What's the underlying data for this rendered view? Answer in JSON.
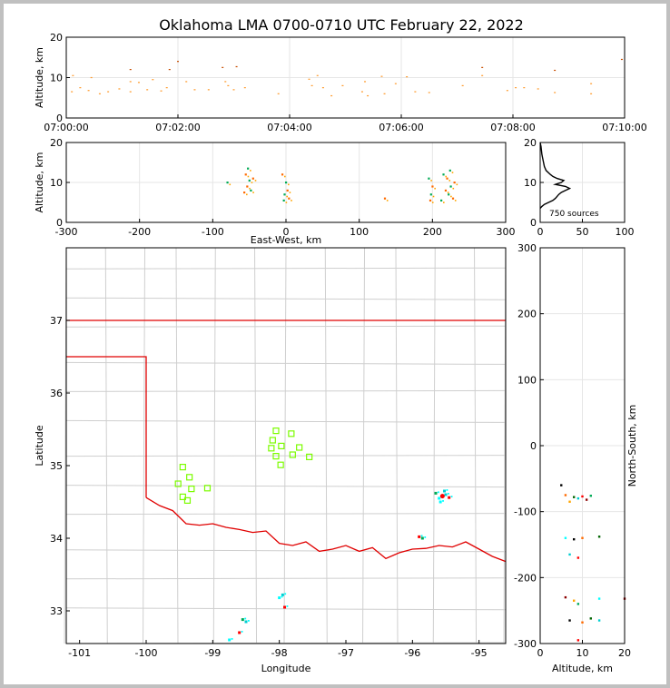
{
  "chart_data": [
    {
      "panel": "altitude-time",
      "type": "scatter",
      "title": "Oklahoma LMA 0700-0710 UTC February 22, 2022",
      "ylabel": "Altitude, km",
      "ylim": [
        0,
        20
      ],
      "yticks": [
        "0",
        "10",
        "20"
      ],
      "xticks": [
        "07:00:00",
        "07:02:00",
        "07:04:00",
        "07:06:00",
        "07:08:00",
        "07:10:00"
      ],
      "x_unit": "minutes after 07:00:00 UTC",
      "xlim": [
        0,
        10
      ],
      "points": [
        [
          0.1,
          6.5
        ],
        [
          0.12,
          10.5
        ],
        [
          0.25,
          7.5
        ],
        [
          0.4,
          6.8
        ],
        [
          0.45,
          10
        ],
        [
          0.6,
          6
        ],
        [
          0.75,
          6.5
        ],
        [
          0.95,
          7.2
        ],
        [
          1.15,
          12
        ],
        [
          1.15,
          9
        ],
        [
          1.15,
          6.5
        ],
        [
          1.3,
          8.8
        ],
        [
          1.45,
          7
        ],
        [
          1.55,
          9.5
        ],
        [
          1.7,
          6.7
        ],
        [
          1.8,
          7.5
        ],
        [
          1.85,
          12
        ],
        [
          2.0,
          14
        ],
        [
          2.15,
          9
        ],
        [
          2.3,
          7
        ],
        [
          2.55,
          7
        ],
        [
          2.8,
          12.5
        ],
        [
          2.85,
          9
        ],
        [
          2.9,
          8
        ],
        [
          3.0,
          7
        ],
        [
          3.05,
          12.7
        ],
        [
          3.2,
          7.5
        ],
        [
          3.8,
          6
        ],
        [
          4.35,
          9.6
        ],
        [
          4.4,
          8
        ],
        [
          4.5,
          10.5
        ],
        [
          4.6,
          7.5
        ],
        [
          4.75,
          5.5
        ],
        [
          4.95,
          8
        ],
        [
          5.3,
          6.5
        ],
        [
          5.35,
          9
        ],
        [
          5.4,
          5.5
        ],
        [
          5.65,
          10.3
        ],
        [
          5.7,
          6
        ],
        [
          5.9,
          8.5
        ],
        [
          6.1,
          10.2
        ],
        [
          6.25,
          6.5
        ],
        [
          6.5,
          6.3
        ],
        [
          7.1,
          8
        ],
        [
          7.45,
          12.5
        ],
        [
          7.45,
          10.5
        ],
        [
          7.9,
          6.8
        ],
        [
          8.05,
          7.5
        ],
        [
          8.2,
          7.5
        ],
        [
          8.45,
          7.2
        ],
        [
          8.75,
          6.3
        ],
        [
          8.75,
          11.8
        ],
        [
          9.4,
          6
        ],
        [
          9.4,
          8.5
        ],
        [
          9.95,
          14.5
        ]
      ]
    },
    {
      "panel": "altitude-eastwest",
      "type": "scatter",
      "xlabel": "East-West, km",
      "ylabel": "Altitude, km",
      "xlim": [
        -300,
        300
      ],
      "ylim": [
        0,
        20
      ],
      "xticks": [
        "-300",
        "-200",
        "-100",
        "0",
        "100",
        "200",
        "300"
      ],
      "yticks": [
        "0",
        "10",
        "20"
      ],
      "points": [
        [
          -55,
          12
        ],
        [
          -50,
          10.5
        ],
        [
          -53,
          9
        ],
        [
          -48,
          8
        ],
        [
          -57,
          7.5
        ],
        [
          -80,
          10
        ],
        [
          -45,
          11
        ],
        [
          -52,
          13.5
        ],
        [
          -5,
          12
        ],
        [
          0,
          10
        ],
        [
          2,
          8
        ],
        [
          -2,
          7
        ],
        [
          4,
          6
        ],
        [
          -3,
          5.5
        ],
        [
          135,
          6
        ],
        [
          195,
          11
        ],
        [
          200,
          9
        ],
        [
          198,
          7
        ],
        [
          197,
          5.5
        ],
        [
          215,
          12
        ],
        [
          220,
          11
        ],
        [
          225,
          9
        ],
        [
          218,
          8
        ],
        [
          222,
          7
        ],
        [
          228,
          6
        ],
        [
          212,
          5.5
        ],
        [
          230,
          10
        ],
        [
          224,
          13
        ]
      ]
    },
    {
      "panel": "altitude-histogram",
      "type": "line",
      "xlim": [
        0,
        100
      ],
      "ylim": [
        0,
        20
      ],
      "xticks": [
        "0",
        "50",
        "100"
      ],
      "yticks": [
        "0",
        "10",
        "20"
      ],
      "annotation": "750 sources",
      "points": [
        [
          0,
          20
        ],
        [
          1,
          19
        ],
        [
          2,
          17
        ],
        [
          3,
          16
        ],
        [
          4,
          15
        ],
        [
          5,
          14
        ],
        [
          7,
          13
        ],
        [
          12,
          12
        ],
        [
          15,
          11.5
        ],
        [
          20,
          11
        ],
        [
          28,
          10.5
        ],
        [
          25,
          10
        ],
        [
          18,
          9.5
        ],
        [
          30,
          9
        ],
        [
          35,
          8.5
        ],
        [
          30,
          8
        ],
        [
          25,
          7.5
        ],
        [
          22,
          7
        ],
        [
          20,
          6.5
        ],
        [
          18,
          6
        ],
        [
          15,
          5.5
        ],
        [
          10,
          5
        ],
        [
          5,
          4.5
        ],
        [
          2,
          4
        ],
        [
          0,
          3.5
        ]
      ]
    },
    {
      "panel": "plan-view-map",
      "type": "scatter",
      "xlabel": "Longitude",
      "ylabel": "Latitude",
      "xlim": [
        -101.2,
        -94.6
      ],
      "ylim": [
        32.55,
        38.0
      ],
      "xticks": [
        "-101",
        "-100",
        "-99",
        "-98",
        "-97",
        "-96",
        "-95"
      ],
      "yticks": [
        "33",
        "34",
        "35",
        "36",
        "37"
      ],
      "stations": [
        [
          -98.05,
          35.48
        ],
        [
          -97.82,
          35.44
        ],
        [
          -98.1,
          35.35
        ],
        [
          -97.97,
          35.27
        ],
        [
          -98.12,
          35.24
        ],
        [
          -97.7,
          35.25
        ],
        [
          -98.05,
          35.13
        ],
        [
          -97.8,
          35.15
        ],
        [
          -97.55,
          35.12
        ],
        [
          -97.98,
          35.01
        ],
        [
          -99.45,
          34.98
        ],
        [
          -99.35,
          34.84
        ],
        [
          -99.52,
          34.75
        ],
        [
          -99.32,
          34.68
        ],
        [
          -99.08,
          34.69
        ],
        [
          -99.45,
          34.57
        ],
        [
          -99.38,
          34.52
        ]
      ],
      "sources": [
        [
          -95.55,
          34.58
        ],
        [
          -95.5,
          34.6
        ],
        [
          -95.6,
          34.55
        ],
        [
          -95.45,
          34.56
        ],
        [
          -95.65,
          34.62
        ],
        [
          -95.52,
          34.65
        ],
        [
          -95.58,
          34.5
        ],
        [
          -95.9,
          34.02
        ],
        [
          -95.85,
          34.0
        ],
        [
          -97.95,
          33.22
        ],
        [
          -98.0,
          33.18
        ],
        [
          -97.92,
          33.05
        ],
        [
          -98.55,
          32.88
        ],
        [
          -98.5,
          32.85
        ],
        [
          -98.75,
          32.6
        ],
        [
          -98.6,
          32.7
        ]
      ]
    },
    {
      "panel": "northsouth-altitude",
      "type": "scatter",
      "xlabel": "Altitude, km",
      "ylabel": "North-South, km",
      "xlim": [
        0,
        20
      ],
      "ylim": [
        -300,
        300
      ],
      "xticks": [
        "0",
        "10",
        "20"
      ],
      "yticks": [
        "-300",
        "-200",
        "-100",
        "0",
        "100",
        "200",
        "300"
      ],
      "points": [
        [
          5,
          -60
        ],
        [
          6,
          -75
        ],
        [
          8,
          -78
        ],
        [
          9,
          -80
        ],
        [
          10,
          -77
        ],
        [
          11,
          -82
        ],
        [
          7,
          -85
        ],
        [
          12,
          -76
        ],
        [
          6,
          -140
        ],
        [
          8,
          -142
        ],
        [
          10,
          -140
        ],
        [
          14,
          -138
        ],
        [
          7,
          -165
        ],
        [
          9,
          -170
        ],
        [
          6,
          -230
        ],
        [
          8,
          -235
        ],
        [
          9,
          -240
        ],
        [
          14,
          -232
        ],
        [
          7,
          -265
        ],
        [
          10,
          -268
        ],
        [
          12,
          -262
        ],
        [
          14,
          -265
        ],
        [
          9,
          -295
        ],
        [
          20,
          -232
        ]
      ]
    }
  ]
}
